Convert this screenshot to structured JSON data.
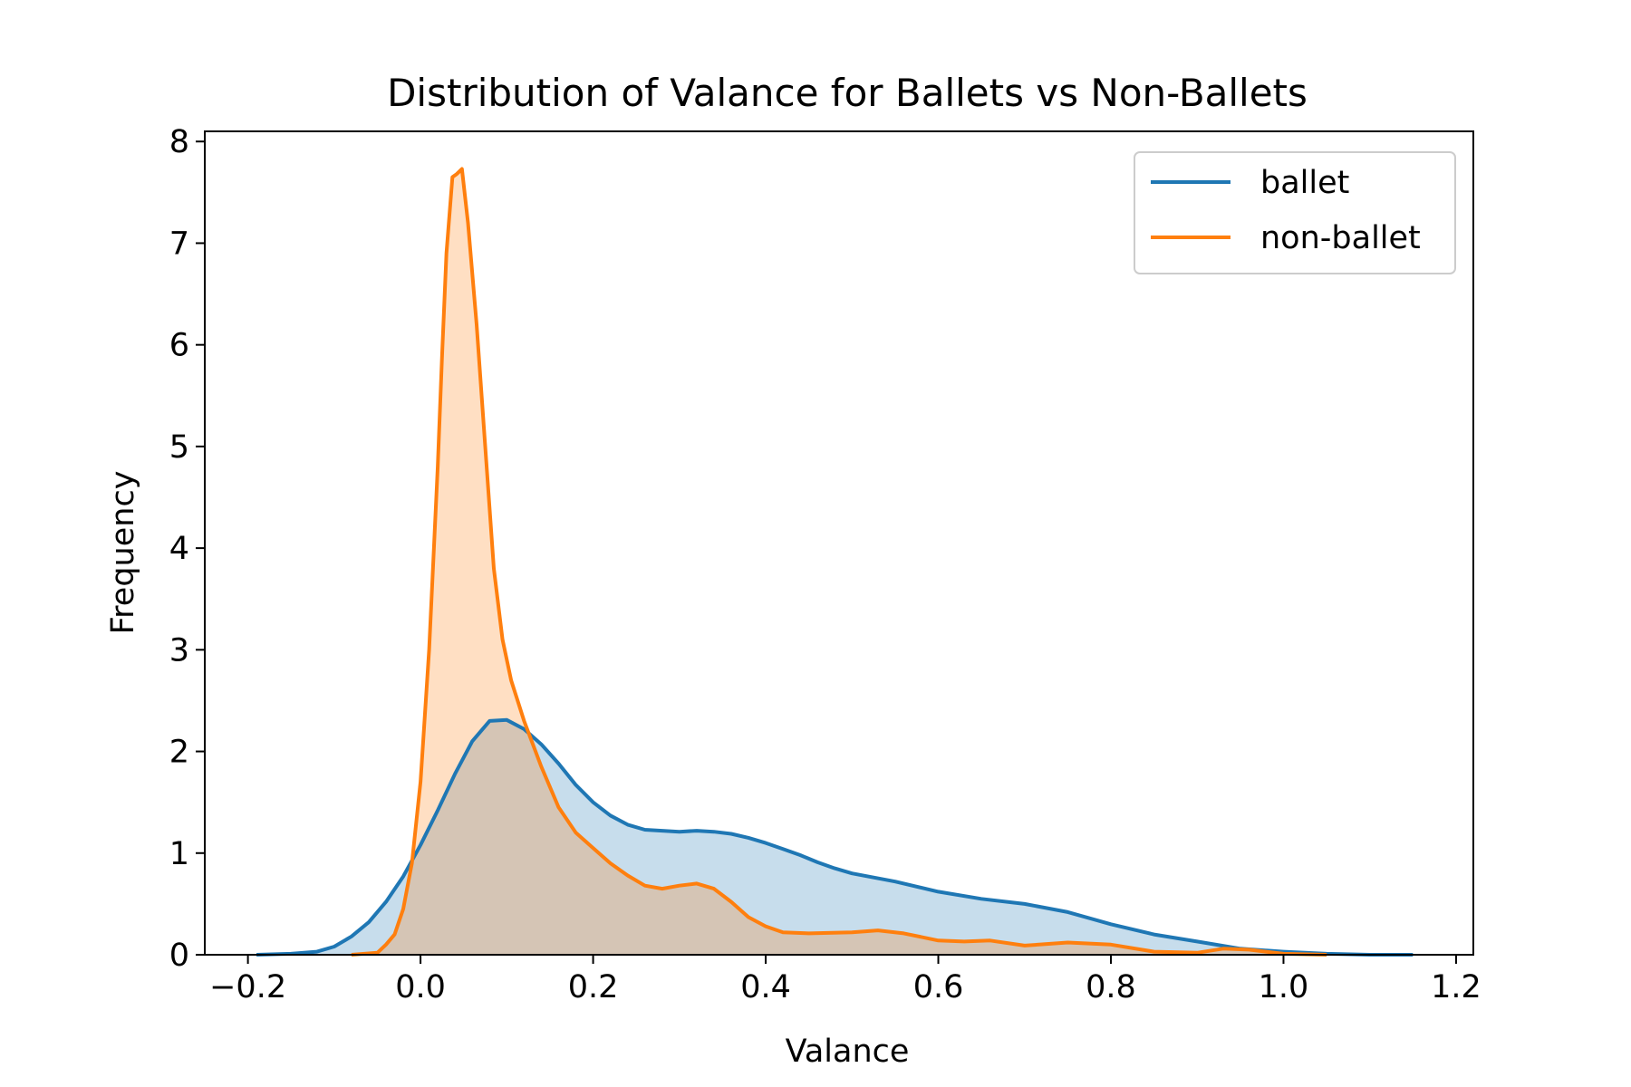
{
  "chart_data": {
    "type": "area",
    "title": "Distribution of Valance for Ballets vs Non-Ballets",
    "xlabel": "Valance",
    "ylabel": "Frequency",
    "xlim": [
      -0.25,
      1.22
    ],
    "ylim": [
      0,
      8.1
    ],
    "xticks": [
      -0.2,
      0.0,
      0.2,
      0.4,
      0.6,
      0.8,
      1.0,
      1.2
    ],
    "xtick_labels": [
      "−0.2",
      "0.0",
      "0.2",
      "0.4",
      "0.6",
      "0.8",
      "1.0",
      "1.2"
    ],
    "yticks": [
      0,
      1,
      2,
      3,
      4,
      5,
      6,
      7,
      8
    ],
    "ytick_labels": [
      "0",
      "1",
      "2",
      "3",
      "4",
      "5",
      "6",
      "7",
      "8"
    ],
    "grid": false,
    "legend_position": "top-right",
    "series": [
      {
        "name": "ballet",
        "color": "#1f77b4",
        "fill": "#c6dcee",
        "points": [
          [
            -0.19,
            0.0
          ],
          [
            -0.15,
            0.01
          ],
          [
            -0.12,
            0.03
          ],
          [
            -0.1,
            0.08
          ],
          [
            -0.08,
            0.18
          ],
          [
            -0.06,
            0.32
          ],
          [
            -0.04,
            0.52
          ],
          [
            -0.02,
            0.77
          ],
          [
            0.0,
            1.08
          ],
          [
            0.02,
            1.42
          ],
          [
            0.04,
            1.78
          ],
          [
            0.06,
            2.1
          ],
          [
            0.08,
            2.3
          ],
          [
            0.1,
            2.31
          ],
          [
            0.12,
            2.22
          ],
          [
            0.14,
            2.07
          ],
          [
            0.16,
            1.88
          ],
          [
            0.18,
            1.67
          ],
          [
            0.2,
            1.5
          ],
          [
            0.22,
            1.37
          ],
          [
            0.24,
            1.28
          ],
          [
            0.26,
            1.23
          ],
          [
            0.28,
            1.22
          ],
          [
            0.3,
            1.21
          ],
          [
            0.32,
            1.22
          ],
          [
            0.34,
            1.21
          ],
          [
            0.36,
            1.19
          ],
          [
            0.38,
            1.15
          ],
          [
            0.4,
            1.1
          ],
          [
            0.42,
            1.04
          ],
          [
            0.44,
            0.98
          ],
          [
            0.46,
            0.91
          ],
          [
            0.48,
            0.85
          ],
          [
            0.5,
            0.8
          ],
          [
            0.55,
            0.72
          ],
          [
            0.6,
            0.62
          ],
          [
            0.65,
            0.55
          ],
          [
            0.7,
            0.5
          ],
          [
            0.75,
            0.42
          ],
          [
            0.8,
            0.3
          ],
          [
            0.85,
            0.2
          ],
          [
            0.9,
            0.13
          ],
          [
            0.95,
            0.06
          ],
          [
            1.0,
            0.03
          ],
          [
            1.05,
            0.01
          ],
          [
            1.1,
            0.0
          ],
          [
            1.15,
            0.0
          ]
        ]
      },
      {
        "name": "non-ballet",
        "color": "#ff7f0e",
        "fill": "#fed9b8",
        "points": [
          [
            -0.08,
            0.0
          ],
          [
            -0.05,
            0.02
          ],
          [
            -0.04,
            0.1
          ],
          [
            -0.03,
            0.2
          ],
          [
            -0.02,
            0.45
          ],
          [
            -0.01,
            0.9
          ],
          [
            0.0,
            1.7
          ],
          [
            0.01,
            3.0
          ],
          [
            0.02,
            4.8
          ],
          [
            0.025,
            5.9
          ],
          [
            0.03,
            6.9
          ],
          [
            0.037,
            7.65
          ],
          [
            0.042,
            7.68
          ],
          [
            0.048,
            7.73
          ],
          [
            0.055,
            7.2
          ],
          [
            0.065,
            6.2
          ],
          [
            0.075,
            5.0
          ],
          [
            0.085,
            3.8
          ],
          [
            0.095,
            3.1
          ],
          [
            0.105,
            2.7
          ],
          [
            0.12,
            2.3
          ],
          [
            0.14,
            1.85
          ],
          [
            0.16,
            1.45
          ],
          [
            0.18,
            1.2
          ],
          [
            0.2,
            1.05
          ],
          [
            0.22,
            0.9
          ],
          [
            0.24,
            0.78
          ],
          [
            0.26,
            0.68
          ],
          [
            0.28,
            0.65
          ],
          [
            0.3,
            0.68
          ],
          [
            0.32,
            0.7
          ],
          [
            0.34,
            0.65
          ],
          [
            0.36,
            0.52
          ],
          [
            0.38,
            0.37
          ],
          [
            0.4,
            0.28
          ],
          [
            0.42,
            0.22
          ],
          [
            0.45,
            0.21
          ],
          [
            0.5,
            0.22
          ],
          [
            0.53,
            0.24
          ],
          [
            0.56,
            0.21
          ],
          [
            0.6,
            0.14
          ],
          [
            0.63,
            0.13
          ],
          [
            0.66,
            0.14
          ],
          [
            0.7,
            0.09
          ],
          [
            0.75,
            0.12
          ],
          [
            0.8,
            0.1
          ],
          [
            0.85,
            0.03
          ],
          [
            0.9,
            0.02
          ],
          [
            0.93,
            0.06
          ],
          [
            0.96,
            0.05
          ],
          [
            1.0,
            0.01
          ],
          [
            1.05,
            0.0
          ]
        ]
      }
    ]
  }
}
